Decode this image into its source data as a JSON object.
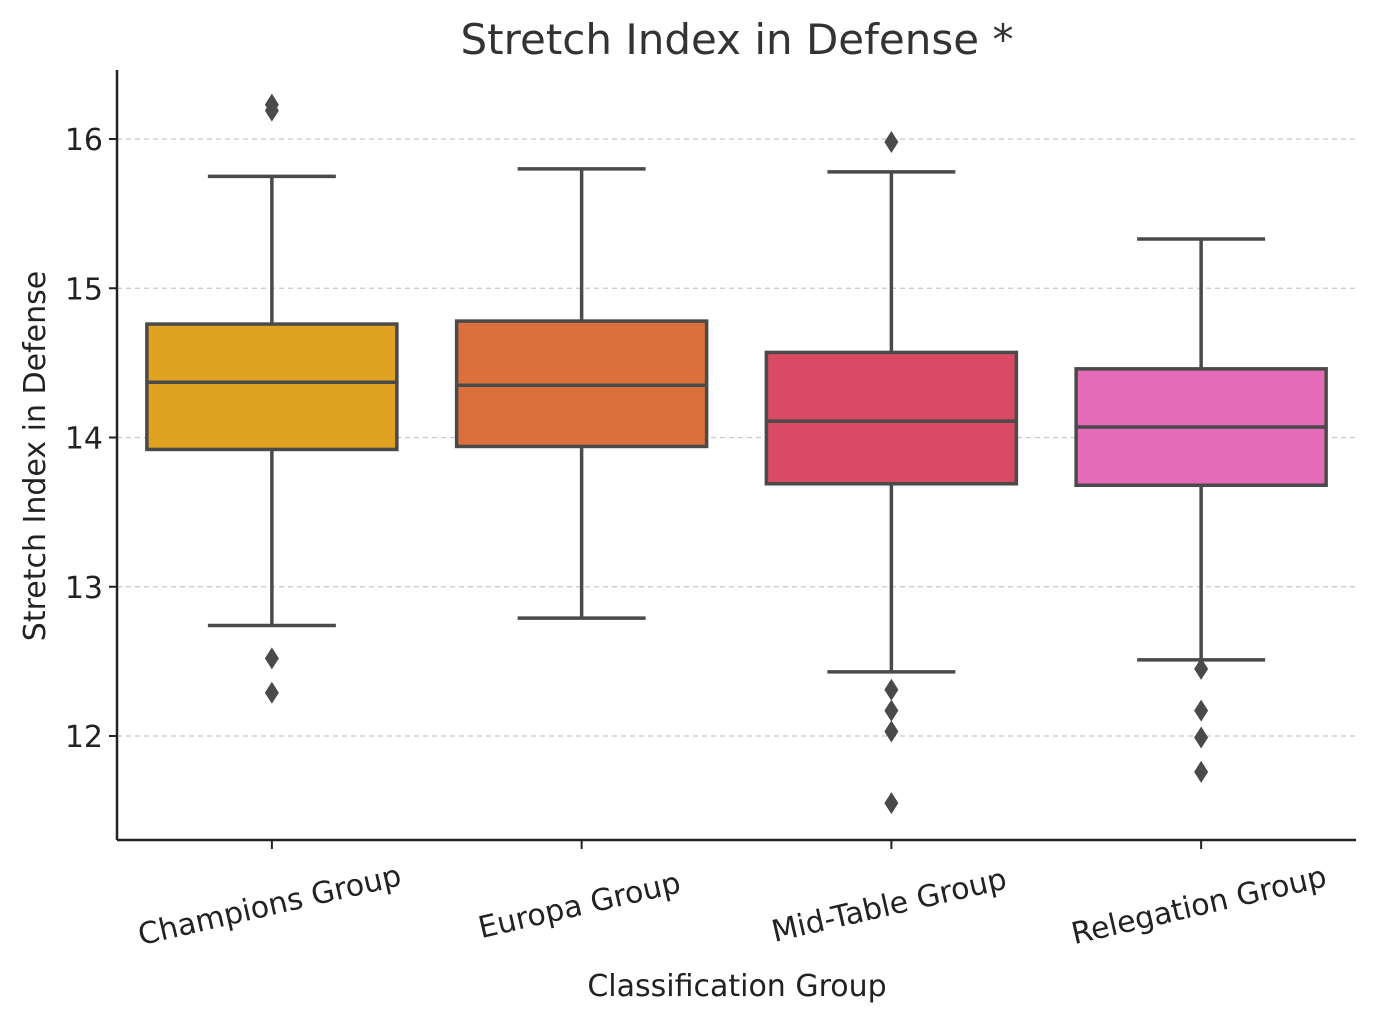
{
  "chart_data": {
    "type": "box",
    "title": "Stretch Index in Defense *",
    "xlabel": "Classification Group",
    "ylabel": "Stretch Index in Defense",
    "ylim": [
      11.3,
      16.45
    ],
    "yticks": [
      12,
      13,
      14,
      15,
      16
    ],
    "grid": "y-dashed",
    "categories": [
      "Champions Group",
      "Europa Group",
      "Mid-Table Group",
      "Relegation Group"
    ],
    "boxes": [
      {
        "category": "Champions Group",
        "color": "#e0a321",
        "whisker_low": 12.74,
        "q1": 13.92,
        "median": 14.37,
        "q3": 14.76,
        "whisker_high": 15.75,
        "outliers": [
          16.19,
          16.23,
          12.52,
          12.29
        ]
      },
      {
        "category": "Europa Group",
        "color": "#da713c",
        "whisker_low": 12.79,
        "q1": 13.94,
        "median": 14.35,
        "q3": 14.78,
        "whisker_high": 15.8,
        "outliers": []
      },
      {
        "category": "Mid-Table Group",
        "color": "#db4a65",
        "whisker_low": 12.43,
        "q1": 13.69,
        "median": 14.11,
        "q3": 14.57,
        "whisker_high": 15.78,
        "outliers": [
          15.98,
          12.31,
          12.17,
          12.03,
          11.55
        ]
      },
      {
        "category": "Relegation Group",
        "color": "#e36bb7",
        "whisker_low": 12.51,
        "q1": 13.68,
        "median": 14.07,
        "q3": 14.46,
        "whisker_high": 15.33,
        "outliers": [
          12.45,
          12.17,
          11.99,
          11.76
        ]
      }
    ]
  }
}
